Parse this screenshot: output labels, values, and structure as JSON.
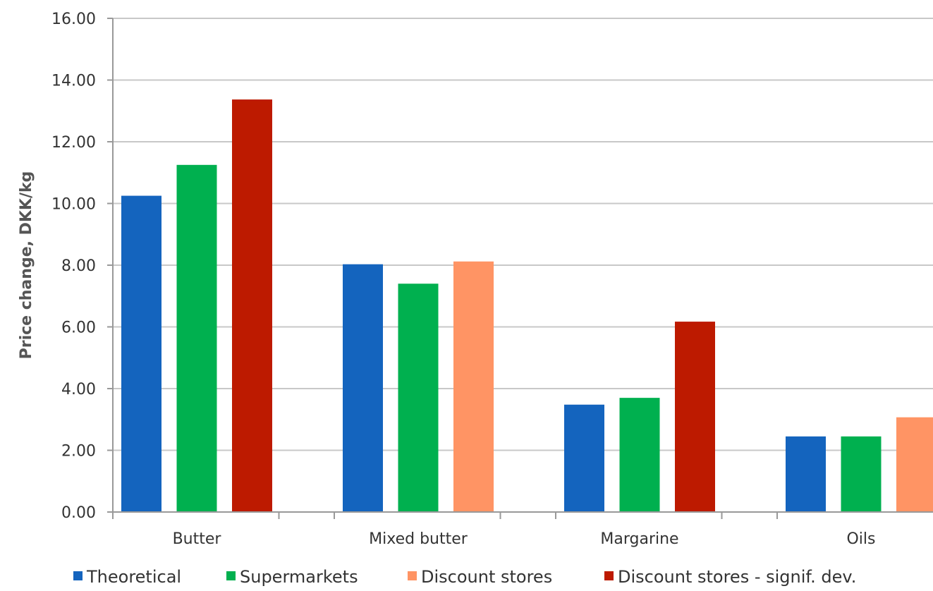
{
  "chart_data": {
    "type": "bar",
    "title": "",
    "xlabel": "",
    "ylabel": "Price change, DKK/kg",
    "ylim": [
      0,
      16
    ],
    "yticks": [
      "0.00",
      "2.00",
      "4.00",
      "6.00",
      "8.00",
      "10.00",
      "12.00",
      "14.00",
      "16.00"
    ],
    "grid": true,
    "legend_position": "bottom",
    "categories": [
      "Butter",
      "Mixed butter",
      "Margarine",
      "Oils"
    ],
    "series": [
      {
        "name": "Theoretical",
        "color": "#1464BE",
        "values": [
          10.25,
          8.03,
          3.48,
          2.45
        ]
      },
      {
        "name": "Supermarkets",
        "color": "#00B04F",
        "values": [
          11.25,
          7.4,
          3.7,
          2.45
        ]
      },
      {
        "name": "Discount stores",
        "color": "#FF9464",
        "values": [
          null,
          8.12,
          null,
          3.07
        ]
      },
      {
        "name": "Discount stores - signif. dev.",
        "color": "#BD1A00",
        "values": [
          13.37,
          null,
          6.17,
          null
        ]
      }
    ]
  }
}
